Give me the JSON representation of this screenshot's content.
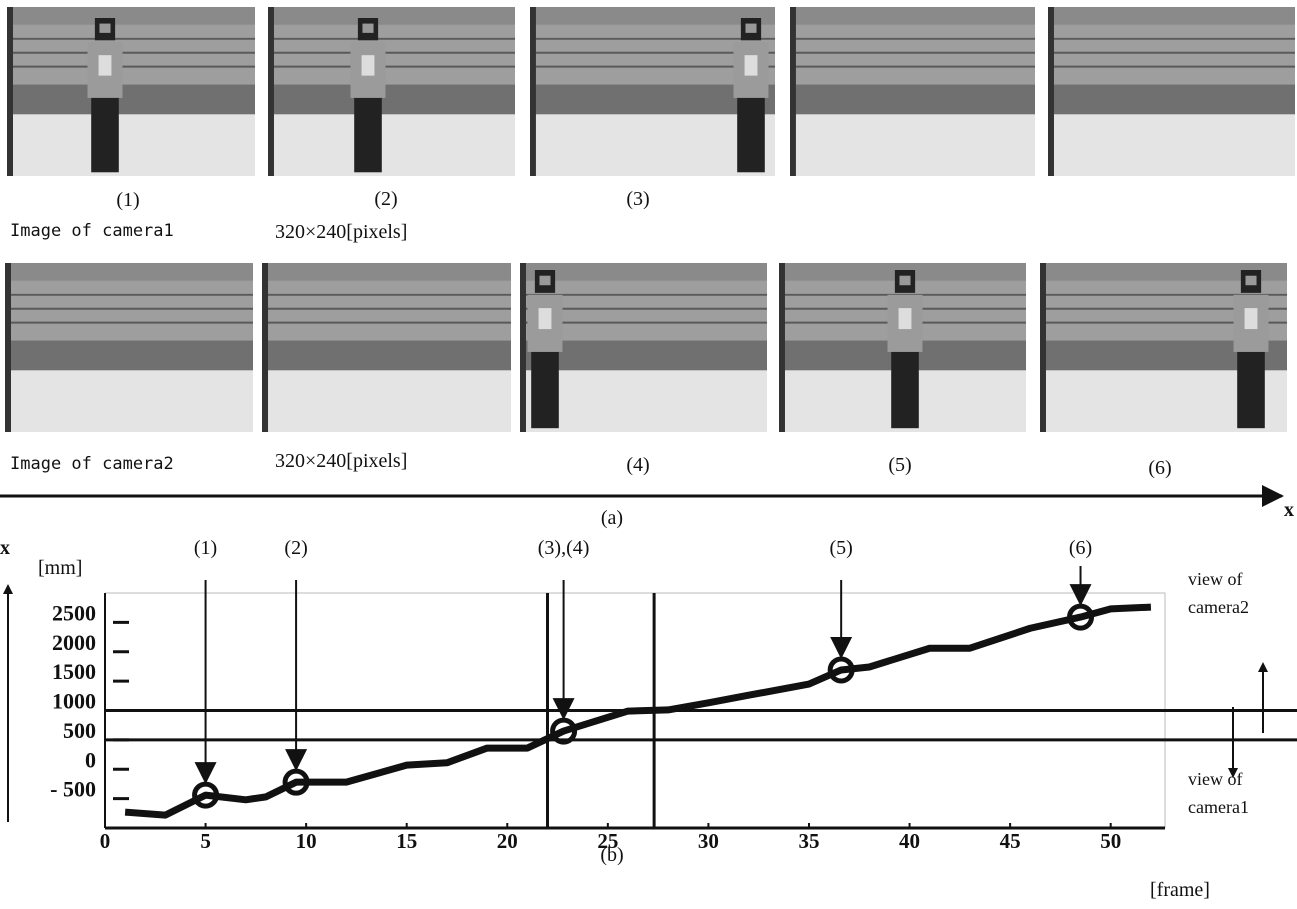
{
  "figure": {
    "camera1": {
      "caption": "Image of camera1",
      "resolution": "320×240[pixels]",
      "frame_labels": [
        "(1)",
        "(2)",
        "(3)"
      ]
    },
    "camera2": {
      "caption": "Image of camera2",
      "resolution": "320×240[pixels]",
      "frame_labels": [
        "(4)",
        "(5)",
        "(6)"
      ]
    },
    "axis_symbol": "x",
    "panel_a": "(a)"
  },
  "chart_data": {
    "type": "line",
    "panel_label": "(b)",
    "y_axis_symbol": "x",
    "y_unit": "[mm]",
    "x_unit": "[frame]",
    "x": [
      1,
      3,
      5,
      7,
      8,
      9.5,
      12,
      15,
      17,
      19,
      21,
      22.8,
      26,
      28,
      30,
      32,
      35,
      36.6,
      38,
      41,
      43,
      46,
      48.5,
      50,
      52
    ],
    "series": [
      {
        "color": "#111111",
        "values": [
          -730,
          -780,
          -440,
          -520,
          -470,
          -220,
          -220,
          70,
          110,
          360,
          360,
          650,
          990,
          1010,
          1130,
          1260,
          1450,
          1690,
          1740,
          2060,
          2060,
          2400,
          2590,
          2730,
          2760
        ]
      }
    ],
    "xlim": [
      0,
      52.7
    ],
    "ylim": [
      -1000,
      3000
    ],
    "xticks": [
      0,
      5,
      10,
      15,
      20,
      25,
      30,
      35,
      40,
      45,
      50
    ],
    "yticks": [
      {
        "value": -500,
        "label": "- 500"
      },
      0,
      500,
      1000,
      1500,
      2000,
      2500
    ],
    "camera_bounds": [
      1000,
      500
    ],
    "transition_frames": [
      22,
      27.3
    ],
    "camera_views": [
      "view of camera2",
      "view of camera1"
    ],
    "annotations": [
      {
        "label": "(1)",
        "x": 5,
        "y": -440
      },
      {
        "label": "(2)",
        "x": 9.5,
        "y": -220
      },
      {
        "label": "(3),(4)",
        "x": 22.8,
        "y": 650
      },
      {
        "label": "(5)",
        "x": 36.6,
        "y": 1690
      },
      {
        "label": "(6)",
        "x": 48.5,
        "y": 2590
      }
    ]
  }
}
